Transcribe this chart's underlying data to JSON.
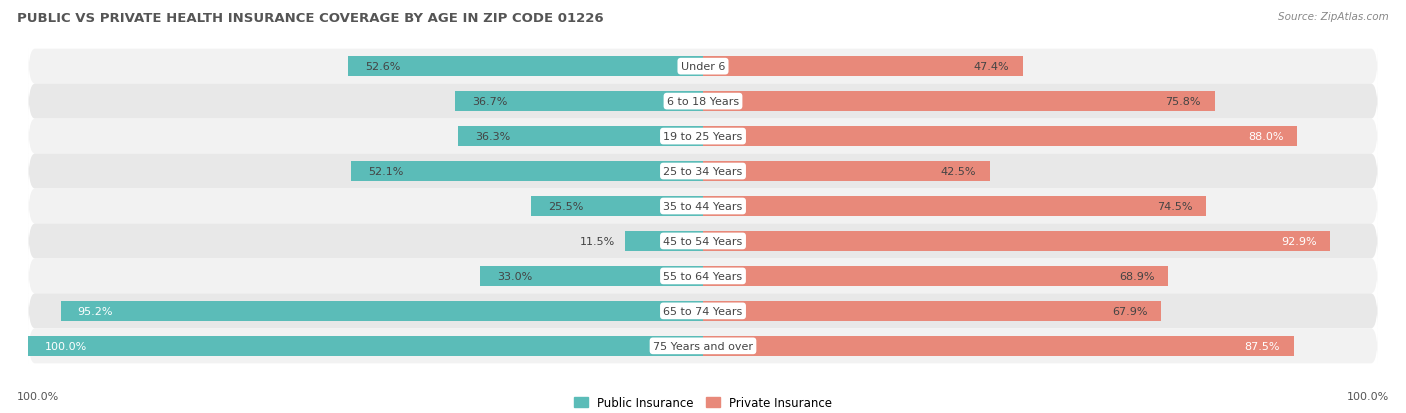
{
  "title": "PUBLIC VS PRIVATE HEALTH INSURANCE COVERAGE BY AGE IN ZIP CODE 01226",
  "source": "Source: ZipAtlas.com",
  "categories": [
    "Under 6",
    "6 to 18 Years",
    "19 to 25 Years",
    "25 to 34 Years",
    "35 to 44 Years",
    "45 to 54 Years",
    "55 to 64 Years",
    "65 to 74 Years",
    "75 Years and over"
  ],
  "public_values": [
    52.6,
    36.7,
    36.3,
    52.1,
    25.5,
    11.5,
    33.0,
    95.2,
    100.0
  ],
  "private_values": [
    47.4,
    75.8,
    88.0,
    42.5,
    74.5,
    92.9,
    68.9,
    67.9,
    87.5
  ],
  "public_color": "#5bbcb8",
  "private_color": "#e8897a",
  "row_bg_odd": "#f2f2f2",
  "row_bg_even": "#e8e8e8",
  "title_color": "#555555",
  "max_value": 100.0,
  "bar_height": 0.58,
  "legend_public": "Public Insurance",
  "legend_private": "Private Insurance",
  "figbg": "#ffffff"
}
